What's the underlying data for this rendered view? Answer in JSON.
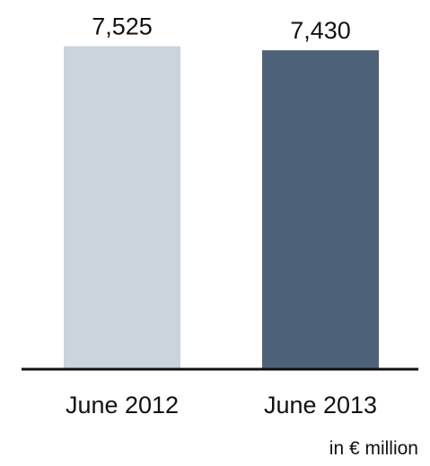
{
  "chart_data": {
    "type": "bar",
    "categories": [
      "June 2012",
      "June 2013"
    ],
    "values": [
      7525,
      7430
    ],
    "value_labels": [
      "7,525",
      "7,430"
    ],
    "unit_note": "in € million",
    "colors": [
      "#cbd3db",
      "#4d6279"
    ],
    "axis_color": "#111111",
    "ylim": [
      0,
      7600
    ],
    "grid": false,
    "legend": "none"
  }
}
